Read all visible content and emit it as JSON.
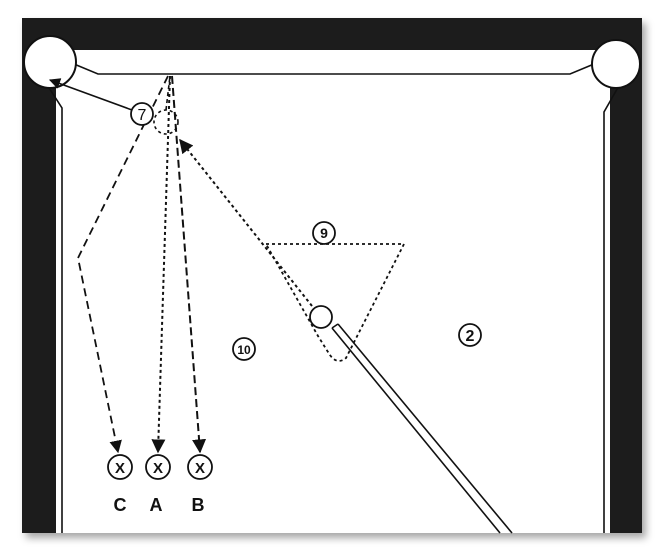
{
  "balls": {
    "seven": "7",
    "nine": "9",
    "ten": "10",
    "two": "2"
  },
  "targets": [
    {
      "mark": "X",
      "label": "C"
    },
    {
      "mark": "X",
      "label": "A"
    },
    {
      "mark": "X",
      "label": "B"
    }
  ],
  "colors": {
    "rail": "#1c1c1c",
    "cloth": "#ffffff",
    "line": "#111111"
  }
}
